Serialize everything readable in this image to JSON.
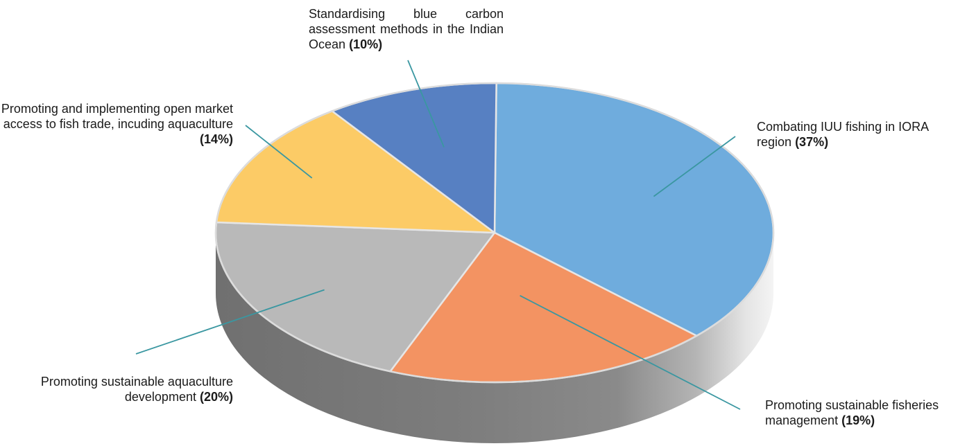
{
  "chart_data": {
    "type": "pie",
    "slices": [
      {
        "label": "Combating IUU fishing in IORA region",
        "value": 37,
        "pct_text": "(37%)",
        "color": "#6FACDD"
      },
      {
        "label": "Promoting sustainable fisheries management",
        "value": 19,
        "pct_text": "(19%)",
        "color": "#F39362"
      },
      {
        "label": "Promoting sustainable aquaculture development",
        "value": 20,
        "pct_text": "(20%)",
        "color": "#B9B9B9"
      },
      {
        "label": "Promoting and implementing open market access to fish trade, incuding aquaculture",
        "value": 14,
        "pct_text": "(14%)",
        "color": "#FCCB66"
      },
      {
        "label": "Standardising blue carbon assessment methods in the Indian Ocean",
        "value": 10,
        "pct_text": "(10%)",
        "color": "#5780C2"
      }
    ],
    "style": "3d",
    "leader_line_color": "#3A97A1"
  }
}
